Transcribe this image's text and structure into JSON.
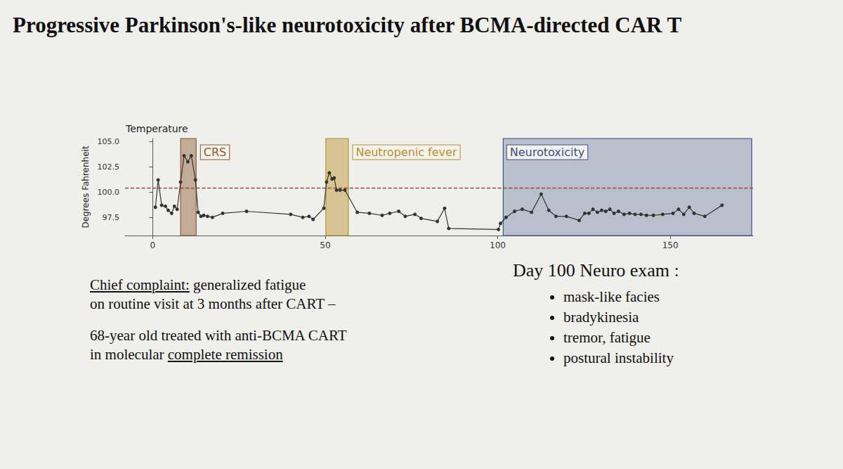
{
  "heading": "Progressive Parkinson's-like neurotoxicity after BCMA-directed CAR T",
  "chart_data": {
    "type": "line",
    "title": "Temperature",
    "y_label": "Degrees Fahrenheit",
    "color": "#333333",
    "marker": "circle",
    "x": [
      0.8,
      1.6,
      2.6,
      3.7,
      4.5,
      5.5,
      6.3,
      7.1,
      8.1,
      9.1,
      10.2,
      11.2,
      12.4,
      13.2,
      14.0,
      14.8,
      15.9,
      17.3,
      20.3,
      27.2,
      40.0,
      43.5,
      45.3,
      46.5,
      49.6,
      50.4,
      51.2,
      52.0,
      52.6,
      53.3,
      54.3,
      55.7,
      59.3,
      62.8,
      66.5,
      68.7,
      71.3,
      73.2,
      76.0,
      77.8,
      82.5,
      84.6,
      85.8,
      100.2,
      100.8,
      102.4,
      104.9,
      107.1,
      109.8,
      112.6,
      114.8,
      116.9,
      119.9,
      123.6,
      125.2,
      126.4,
      127.6,
      128.9,
      130.1,
      131.3,
      132.5,
      133.7,
      135.0,
      136.6,
      138.2,
      139.8,
      141.5,
      143.1,
      145.1,
      147.8,
      150.8,
      152.4,
      153.9,
      155.5,
      156.9,
      160.0,
      165.0
    ],
    "values": [
      98.5,
      101.2,
      98.7,
      98.6,
      98.2,
      97.9,
      98.6,
      98.3,
      101.0,
      103.6,
      103.0,
      103.6,
      101.2,
      98.0,
      97.6,
      97.7,
      97.6,
      97.5,
      97.9,
      98.1,
      97.8,
      97.5,
      97.6,
      97.3,
      98.4,
      101.0,
      101.9,
      101.3,
      101.4,
      100.2,
      100.2,
      100.2,
      98.0,
      97.9,
      97.7,
      97.9,
      98.1,
      97.6,
      97.8,
      97.4,
      97.1,
      98.4,
      96.4,
      96.3,
      96.9,
      97.5,
      98.1,
      98.3,
      98.0,
      99.8,
      98.2,
      97.6,
      97.6,
      97.2,
      97.9,
      97.9,
      98.3,
      98.0,
      98.2,
      98.1,
      98.3,
      97.9,
      98.1,
      97.8,
      97.9,
      97.8,
      97.8,
      97.7,
      97.7,
      97.8,
      97.9,
      98.3,
      97.8,
      98.5,
      97.9,
      97.6,
      98.7
    ],
    "xlim": [
      -8,
      174
    ],
    "xticks": [
      0,
      50,
      100,
      150
    ],
    "ylim": [
      95.7,
      105.3
    ],
    "yticks": [
      97.5,
      {
        "value": 100,
        "label": "100.0"
      },
      102.5,
      {
        "value": 105,
        "label": "105.0"
      }
    ],
    "grid": false,
    "reference_line": {
      "value": 100.4,
      "line_style": "dashed",
      "color": "#9b4a3c"
    },
    "regions": [
      {
        "label": "CRS",
        "start": 8.1,
        "end": 12.6,
        "color": "#8c5a32"
      },
      {
        "label": "Neutropenic fever",
        "start": 50.2,
        "end": 56.7,
        "color": "#b8902a"
      },
      {
        "label": "Neurotoxicity",
        "start": 101.6,
        "end": 173.6,
        "color": "#3b4f86"
      }
    ]
  },
  "left_notes": [
    [
      [
        {
          "text": "Chief complaint:",
          "underline": true
        },
        {
          "text": "generalized fatigue"
        }
      ],
      [
        {
          "text": "on routine visit at 3 months after CART –"
        }
      ]
    ],
    [
      [
        {
          "text": "68-year old treated with anti-BCMA CART"
        }
      ],
      [
        {
          "text": "in molecular"
        },
        {
          "text": "complete remission",
          "underline": true
        }
      ]
    ]
  ],
  "right_notes": {
    "title": "Day 100 Neuro exam :",
    "items": [
      "mask-like facies",
      "bradykinesia",
      "tremor, fatigue",
      "postural instability"
    ]
  }
}
